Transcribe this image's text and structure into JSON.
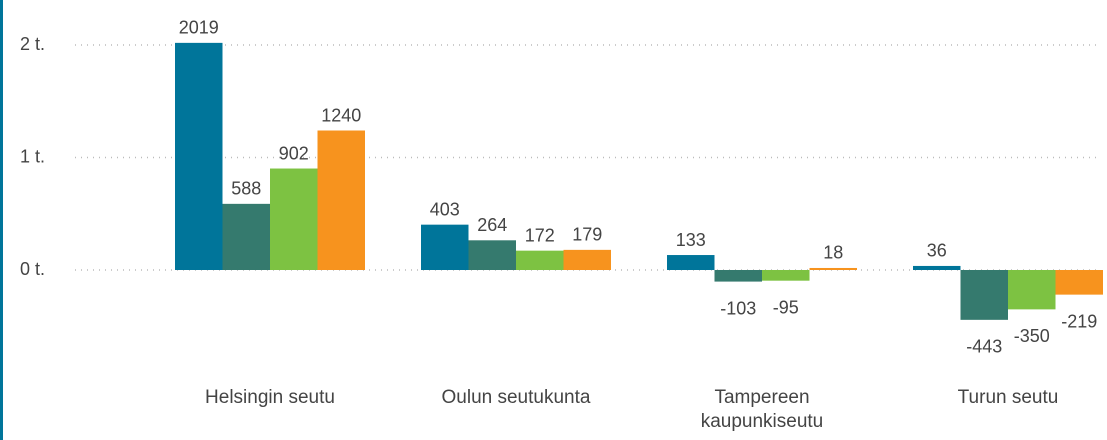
{
  "chart_data": {
    "type": "bar",
    "categories": [
      "Helsingin seutu",
      "Oulun seutukunta",
      "Tampereen kaupunkiseutu",
      "Turun seutu"
    ],
    "series": [
      {
        "color": "#00759a",
        "values": [
          2019,
          403,
          133,
          36
        ]
      },
      {
        "color": "#357a6e",
        "values": [
          588,
          264,
          -103,
          -443
        ]
      },
      {
        "color": "#7dc242",
        "values": [
          902,
          172,
          -95,
          -350
        ]
      },
      {
        "color": "#f7931e",
        "values": [
          1240,
          179,
          18,
          -219
        ]
      }
    ],
    "ylim": [
      -800,
      2000
    ],
    "yticks": [
      {
        "value": 0,
        "label": "0 t."
      },
      {
        "value": 1000,
        "label": "1 t."
      },
      {
        "value": 2000,
        "label": "2 t."
      }
    ],
    "grid": true
  }
}
